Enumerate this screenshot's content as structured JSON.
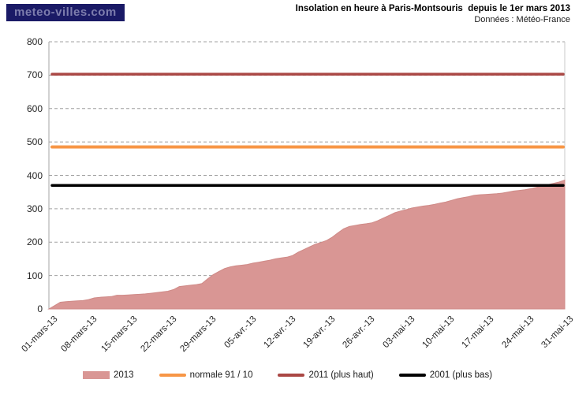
{
  "header": {
    "logo_text": "meteo-villes.com",
    "title": "Insolation en heure à Paris-Montsouris  depuis le 1er mars 2013",
    "subtitle": "Données : Météo-France"
  },
  "colors": {
    "logo_bg": "#1a1a66",
    "logo_text": "#7d7dad",
    "area_2013": "#d99694",
    "normale": "#f79646",
    "line_2011": "#aa4744",
    "line_2001": "#000000",
    "gridline": "#a0a0a0",
    "axis": "#a6a6a6",
    "tick_text": "#262626"
  },
  "chart_data": {
    "type": "area",
    "title": "Insolation en heure à Paris-Montsouris  depuis le 1er mars 2013",
    "source": "Données : Météo-France",
    "xlabel": "",
    "ylabel": "",
    "ylim": [
      0,
      800
    ],
    "yticks": [
      0,
      100,
      200,
      300,
      400,
      500,
      600,
      700,
      800
    ],
    "grid": "horizontal-dashed",
    "legend_position": "bottom",
    "categories": [
      "01-mars-13",
      "08-mars-13",
      "15-mars-13",
      "22-mars-13",
      "29-mars-13",
      "05-avr.-13",
      "12-avr.-13",
      "19-avr.-13",
      "26-avr.-13",
      "03-mai-13",
      "10-mai-13",
      "17-mai-13",
      "24-mai-13",
      "31-mai-13"
    ],
    "series": [
      {
        "name": "2013",
        "type": "area",
        "color": "#d99694",
        "weekly_values": [
          0,
          28,
          42,
          55,
          90,
          133,
          155,
          205,
          255,
          297,
          320,
          343,
          357,
          386
        ],
        "daily_cumulative": [
          0,
          10,
          20,
          22,
          23,
          24,
          25,
          28,
          33,
          35,
          36,
          37,
          41,
          41,
          42,
          43,
          44,
          45,
          47,
          49,
          51,
          53,
          58,
          67,
          69,
          71,
          73,
          76,
          90,
          103,
          112,
          121,
          126,
          129,
          131,
          133,
          137,
          140,
          143,
          146,
          150,
          153,
          155,
          160,
          170,
          178,
          186,
          194,
          199,
          205,
          215,
          228,
          240,
          247,
          250,
          253,
          255,
          258,
          264,
          272,
          280,
          288,
          293,
          297,
          302,
          305,
          308,
          310,
          313,
          317,
          320,
          325,
          330,
          333,
          336,
          340,
          342,
          343,
          344,
          345,
          347,
          350,
          353,
          355,
          357,
          360,
          364,
          368,
          372,
          376,
          380,
          386
        ]
      },
      {
        "name": "normale 91 / 10",
        "type": "hline",
        "color": "#f79646",
        "value": 485
      },
      {
        "name": "2011 (plus haut)",
        "type": "hline",
        "color": "#aa4744",
        "value": 703
      },
      {
        "name": "2001 (plus bas)",
        "type": "hline",
        "color": "#000000",
        "value": 370
      }
    ]
  }
}
